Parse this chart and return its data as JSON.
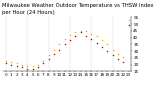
{
  "title": "Milwaukee Weather Outdoor Temperature vs THSW Index",
  "subtitle": "per Hour (24 Hours)",
  "hours": [
    0,
    1,
    2,
    3,
    4,
    5,
    6,
    7,
    8,
    9,
    10,
    11,
    12,
    13,
    14,
    15,
    16,
    17,
    18,
    19,
    20,
    21,
    22,
    23
  ],
  "temp": [
    23,
    22,
    21,
    20,
    19,
    19,
    20,
    23,
    27,
    31,
    35,
    39,
    42,
    44,
    45,
    45,
    43,
    41,
    38,
    35,
    31,
    28,
    26,
    53
  ],
  "thsw": [
    21,
    20,
    19,
    18,
    17,
    17,
    18,
    21,
    24,
    28,
    31,
    35,
    38,
    41,
    44,
    41,
    39,
    36,
    33,
    30,
    27,
    24,
    22,
    49
  ],
  "temp_color": "#FFA500",
  "thsw_color": "#CC0000",
  "bg_color": "#ffffff",
  "grid_color": "#aaaaaa",
  "ylim": [
    15,
    55
  ],
  "yticks": [
    15,
    20,
    25,
    30,
    35,
    40,
    45,
    50,
    55
  ],
  "xticks": [
    0,
    1,
    2,
    3,
    4,
    5,
    6,
    7,
    8,
    9,
    10,
    11,
    12,
    13,
    14,
    15,
    16,
    17,
    18,
    19,
    20,
    21,
    22,
    23
  ],
  "vgrid_hours": [
    0,
    4,
    8,
    12,
    16,
    20
  ],
  "title_fontsize": 3.8,
  "tick_fontsize": 3.0,
  "dot_size": 1.2
}
